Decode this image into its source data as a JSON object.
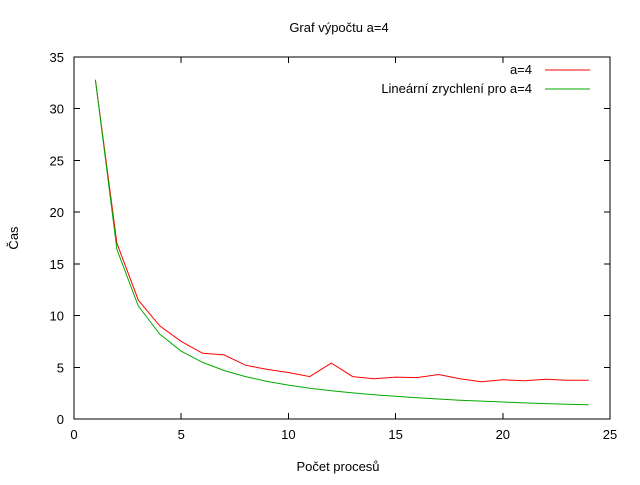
{
  "chart_data": {
    "type": "line",
    "title": "Graf výpočtu a=4",
    "xlabel": "Počet procesů",
    "ylabel": "Čas",
    "xlim": [
      0,
      25
    ],
    "ylim": [
      0,
      35
    ],
    "xticks": [
      0,
      5,
      10,
      15,
      20,
      25
    ],
    "yticks": [
      0,
      5,
      10,
      15,
      20,
      25,
      30,
      35
    ],
    "grid": false,
    "legend_position": "top-right",
    "series": [
      {
        "name": "a=4",
        "color": "#ff0000",
        "x": [
          1,
          2,
          3,
          4,
          5,
          6,
          7,
          8,
          9,
          10,
          11,
          12,
          13,
          14,
          15,
          16,
          17,
          18,
          19,
          20,
          21,
          22,
          23,
          24
        ],
        "y": [
          32.8,
          17.0,
          11.5,
          9.0,
          7.5,
          6.35,
          6.2,
          5.2,
          4.8,
          4.5,
          4.1,
          5.4,
          4.1,
          3.9,
          4.05,
          4.0,
          4.3,
          3.9,
          3.6,
          3.8,
          3.7,
          3.85,
          3.75,
          3.75
        ]
      },
      {
        "name": "Lineární zrychlení pro a=4",
        "color": "#00aa00",
        "x": [
          1,
          2,
          3,
          4,
          5,
          6,
          7,
          8,
          9,
          10,
          11,
          12,
          13,
          14,
          15,
          16,
          17,
          18,
          19,
          20,
          21,
          22,
          23,
          24
        ],
        "y": [
          32.8,
          16.4,
          10.93,
          8.2,
          6.56,
          5.47,
          4.69,
          4.1,
          3.64,
          3.28,
          2.98,
          2.73,
          2.52,
          2.34,
          2.19,
          2.05,
          1.93,
          1.82,
          1.73,
          1.64,
          1.56,
          1.49,
          1.43,
          1.37
        ]
      }
    ]
  }
}
